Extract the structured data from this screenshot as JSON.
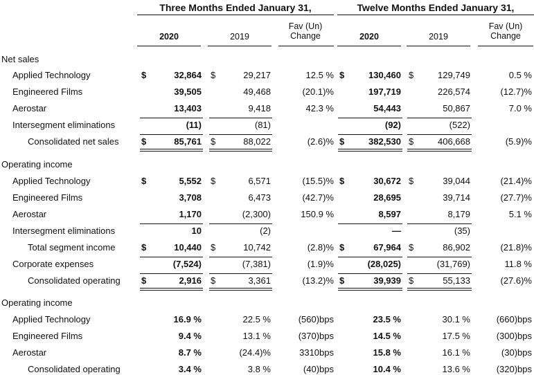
{
  "header": {
    "groups": [
      "Three Months Ended January 31,",
      "Twelve Months Ended January 31,"
    ],
    "columns": [
      "2020",
      "2019",
      "Fav (Un)\nChange",
      "2020",
      "2019",
      "Fav (Un)\nChange"
    ]
  },
  "sections": [
    {
      "title": "Net sales",
      "rows": [
        {
          "label": "Applied Technology",
          "indent": false,
          "cells": [
            "$",
            "32,864",
            "$",
            "29,217",
            "12.5 %",
            "$",
            "130,460",
            "$",
            "129,749",
            "0.5 %"
          ]
        },
        {
          "label": "Engineered Films",
          "indent": false,
          "cells": [
            "",
            "39,505",
            "",
            "49,468",
            "(20.1)%",
            "",
            "197,719",
            "",
            "226,574",
            "(12.7)%"
          ]
        },
        {
          "label": "Aerostar",
          "indent": false,
          "cells": [
            "",
            "13,403",
            "",
            "9,418",
            "42.3 %",
            "",
            "54,443",
            "",
            "50,867",
            "7.0 %"
          ]
        },
        {
          "label": "Intersegment eliminations",
          "indent": false,
          "cells": [
            "",
            "(11)",
            "",
            "(81)",
            "",
            "",
            "(92)",
            "",
            "(522)",
            ""
          ]
        },
        {
          "label": "Consolidated net sales",
          "indent": true,
          "cells": [
            "$",
            "85,761",
            "$",
            "88,022",
            "(2.6)%",
            "$",
            "382,530",
            "$",
            "406,668",
            "(5.9)%"
          ]
        }
      ]
    },
    {
      "title": "Operating income",
      "rows": [
        {
          "label": "Applied Technology",
          "indent": false,
          "cells": [
            "$",
            "5,552",
            "$",
            "6,571",
            "(15.5)%",
            "$",
            "30,672",
            "$",
            "39,044",
            "(21.4)%"
          ]
        },
        {
          "label": "Engineered Films",
          "indent": false,
          "cells": [
            "",
            "3,708",
            "",
            "6,473",
            "(42.7)%",
            "",
            "28,695",
            "",
            "39,714",
            "(27.7)%"
          ]
        },
        {
          "label": "Aerostar",
          "indent": false,
          "cells": [
            "",
            "1,170",
            "",
            "(2,300)",
            "150.9 %",
            "",
            "8,597",
            "",
            "8,179",
            "5.1 %"
          ]
        },
        {
          "label": "Intersegment eliminations",
          "indent": false,
          "cells": [
            "",
            "10",
            "",
            "(2)",
            "",
            "",
            "—",
            "",
            "(35)",
            ""
          ]
        },
        {
          "label": "Total segment income",
          "indent": true,
          "cells": [
            "$",
            "10,440",
            "$",
            "10,742",
            "(2.8)%",
            "$",
            "67,964",
            "$",
            "86,902",
            "(21.8)%"
          ]
        },
        {
          "label": "Corporate expenses",
          "indent": false,
          "cells": [
            "",
            "(7,524)",
            "",
            "(7,381)",
            "(1.9)%",
            "",
            "(28,025)",
            "",
            "(31,769)",
            "11.8 %"
          ]
        },
        {
          "label": "Consolidated operating",
          "indent": true,
          "cells": [
            "$",
            "2,916",
            "$",
            "3,361",
            "(13.2)%",
            "$",
            "39,939",
            "$",
            "55,133",
            "(27.6)%"
          ]
        }
      ]
    },
    {
      "title": "Operating income",
      "rows": [
        {
          "label": "Applied Technology",
          "indent": false,
          "cells": [
            "",
            "16.9 %",
            "",
            "22.5 %",
            "(560)bps",
            "",
            "23.5 %",
            "",
            "30.1 %",
            "(660)bps"
          ]
        },
        {
          "label": "Engineered Films",
          "indent": false,
          "cells": [
            "",
            "9.4 %",
            "",
            "13.1 %",
            "(370)bps",
            "",
            "14.5 %",
            "",
            "17.5 %",
            "(300)bps"
          ]
        },
        {
          "label": "Aerostar",
          "indent": false,
          "cells": [
            "",
            "8.7 %",
            "",
            "(24.4)%",
            "3310bps",
            "",
            "15.8 %",
            "",
            "16.1 %",
            "(30)bps"
          ]
        },
        {
          "label": "Consolidated operating",
          "indent": true,
          "cells": [
            "",
            "3.4 %",
            "",
            "3.8 %",
            "(40)bps",
            "",
            "10.4 %",
            "",
            "13.6 %",
            "(320)bps"
          ]
        }
      ]
    }
  ]
}
